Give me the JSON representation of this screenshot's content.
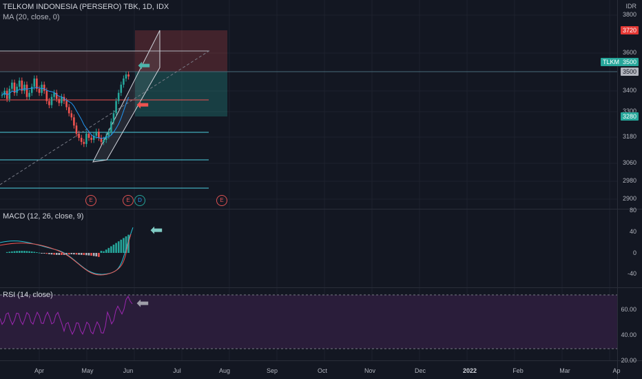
{
  "header": {
    "title": "TELKOM INDONESIA (PERSERO) TBK, 1D, IDX",
    "ma_legend": "MA (20, close, 0)",
    "currency": "IDR"
  },
  "macd": {
    "legend": "MACD (12, 26, close, 9)",
    "ticks": [
      "80",
      "40",
      "0",
      "-40"
    ]
  },
  "rsi": {
    "legend": "RSI (14, close)",
    "ticks": [
      "60.00",
      "40.00",
      "20.00"
    ]
  },
  "price_axis": {
    "ticks": [
      "3800",
      "3600",
      "3400",
      "3300",
      "3180",
      "3060",
      "2980",
      "2900"
    ]
  },
  "tags": {
    "target": "3720",
    "ticker": "TLKM",
    "current": "3500",
    "stop": "3280"
  },
  "time_axis": {
    "labels": [
      "Apr",
      "May",
      "Jun",
      "Jul",
      "Aug",
      "Sep",
      "Oct",
      "Nov",
      "Dec",
      "2022",
      "Feb",
      "Mar",
      "Ap"
    ]
  },
  "events": {
    "earnings": "E",
    "dividend": "D"
  },
  "chart_data": {
    "type": "candlestick",
    "title": "TELKOM INDONESIA (PERSERO) TBK, 1D, IDX",
    "indicators": [
      "MA (20, close, 0)",
      "MACD (12, 26, close, 9)",
      "RSI (14, close)"
    ],
    "price_axis": {
      "min": 2900,
      "max": 3800,
      "ticks": [
        3800,
        3600,
        3400,
        3300,
        3180,
        3060,
        2980,
        2900
      ]
    },
    "horizontal_levels": [
      3600,
      3500,
      3320,
      3220,
      3060,
      2930
    ],
    "position": {
      "entry": 3500,
      "target": 3720,
      "stop": 3280
    },
    "macd_axis": {
      "ticks": [
        80,
        40,
        0,
        -40
      ]
    },
    "rsi_axis": {
      "ticks": [
        60,
        40,
        20
      ],
      "bands": [
        70,
        30
      ]
    },
    "grid": true,
    "legend": "top-left"
  },
  "colors": {
    "bg": "#131722",
    "up": "#26a69a",
    "down": "#ef5350",
    "ma": "#2196f3",
    "rsi": "#9c27b0",
    "grid": "#2a2e39"
  },
  "icons": {
    "arrow": "arrow-left-icon"
  }
}
